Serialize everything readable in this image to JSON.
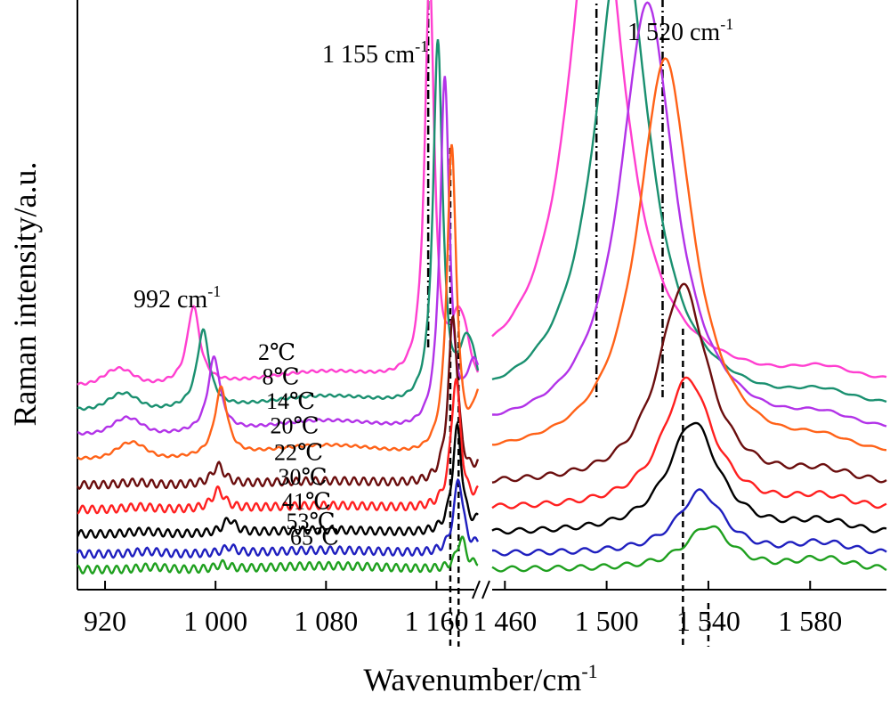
{
  "chart_data": {
    "type": "line",
    "title": "",
    "xlabel": "Wavenumber/cm",
    "xlabel_sup": "-1",
    "ylabel": "Raman intensity/a.u.",
    "x_break": true,
    "panels": [
      {
        "xlim": [
          900,
          1190
        ],
        "ticks": [
          920,
          1000,
          1080,
          1160
        ],
        "tick_labels": [
          "920",
          "1 000",
          "1 080",
          "1 160"
        ]
      },
      {
        "xlim": [
          1455,
          1610
        ],
        "ticks": [
          1460,
          1500,
          1540,
          1580
        ],
        "tick_labels": [
          "1 460",
          "1 500",
          "1 540",
          "1 580"
        ]
      }
    ],
    "annotations": [
      {
        "text": "992 cm",
        "sup": "-1"
      },
      {
        "text": "1 155 cm",
        "sup": "-1"
      },
      {
        "text": "1 520 cm",
        "sup": "-1"
      }
    ],
    "series": [
      {
        "name": "2℃",
        "color": "#ff3fd0",
        "baseline": 0.0,
        "p992": [
          984,
          0.125
        ],
        "p1155": [
          1155,
          0.66
        ],
        "p1520": [
          1496,
          0.84
        ],
        "w1520": 13
      },
      {
        "name": "8℃",
        "color": "#1a9070",
        "baseline": 0.055,
        "p992": [
          991,
          0.125
        ],
        "p1155": [
          1161,
          0.59
        ],
        "p1520": [
          1506,
          0.76
        ],
        "w1520": 13
      },
      {
        "name": "14℃",
        "color": "#b233e8",
        "baseline": 0.11,
        "p992": [
          999,
          0.12
        ],
        "p1155": [
          1166,
          0.57
        ],
        "p1520": [
          1516,
          0.69
        ],
        "w1520": 13
      },
      {
        "name": "20℃",
        "color": "#ff6218",
        "baseline": 0.165,
        "p992": [
          1004,
          0.11
        ],
        "p1155": [
          1171,
          0.5
        ],
        "p1520": [
          1523,
          0.64
        ],
        "w1520": 13
      },
      {
        "name": "22℃",
        "color": "#6b0e0e",
        "baseline": 0.225,
        "p992": [
          1002,
          0.03
        ],
        "p1155": [
          1172,
          0.27
        ],
        "p1520": [
          1530,
          0.32
        ],
        "w1520": 12
      },
      {
        "name": "30℃",
        "color": "#ff2020",
        "baseline": 0.28,
        "p992": [
          1002,
          0.03
        ],
        "p1155": [
          1174,
          0.21
        ],
        "p1520": [
          1532,
          0.21
        ],
        "w1520": 12
      },
      {
        "name": "41℃",
        "color": "#000000",
        "baseline": 0.335,
        "p992": [
          1010,
          0.022
        ],
        "p1155": [
          1175,
          0.17
        ],
        "p1520": [
          1534,
          0.18
        ],
        "w1520": 12
      },
      {
        "name": "53℃",
        "color": "#1f1fbf",
        "baseline": 0.38,
        "p992": [
          1010,
          0.01
        ],
        "p1155": [
          1176,
          0.12
        ],
        "p1520": [
          1537,
          0.1
        ],
        "w1520": 11
      },
      {
        "name": "65℃",
        "color": "#1fa01f",
        "baseline": 0.415,
        "p992": [
          1005,
          0.008
        ],
        "p1155": [
          1178,
          0.05
        ],
        "p1520": [
          1540,
          0.07
        ],
        "w1520": 11
      }
    ],
    "guide_lines": [
      {
        "panel": 0,
        "x": 1154,
        "style": "dash-dot",
        "y_top": 0.73,
        "y_bottom": 0.06
      },
      {
        "panel": 0,
        "x": 1170,
        "style": "dash",
        "y_top": 0.38,
        "y_bottom": -0.42
      },
      {
        "panel": 0,
        "x": 1176,
        "style": "dash",
        "y_top": 0.12,
        "y_bottom": -0.42
      },
      {
        "panel": 1,
        "x": 1496,
        "style": "dash-dot",
        "y_top": 0.86,
        "y_bottom": -0.02
      },
      {
        "panel": 1,
        "x": 1522,
        "style": "dash-dot",
        "y_top": 0.62,
        "y_bottom": -0.02
      },
      {
        "panel": 1,
        "x": 1530,
        "style": "dash",
        "y_top": 0.09,
        "y_bottom": -0.42
      },
      {
        "panel": 1,
        "x": 1540,
        "style": "dash",
        "y_top": -0.35,
        "y_bottom": -0.42
      }
    ],
    "grid": false,
    "legend": "inline labels left of curves"
  }
}
